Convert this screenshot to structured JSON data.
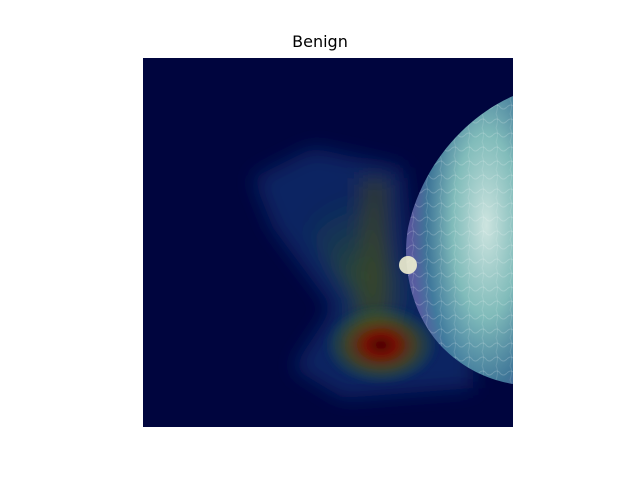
{
  "figure": {
    "title": "Benign"
  },
  "image": {
    "description_name": "mammogram-heatmap-overlay",
    "colors": {
      "background": "#00043a",
      "heat_low": "#0a1a6a",
      "heat_mid": "#2e6a3a",
      "heat_high": "#7a1a00",
      "tissue": "#a8e0e0"
    }
  }
}
